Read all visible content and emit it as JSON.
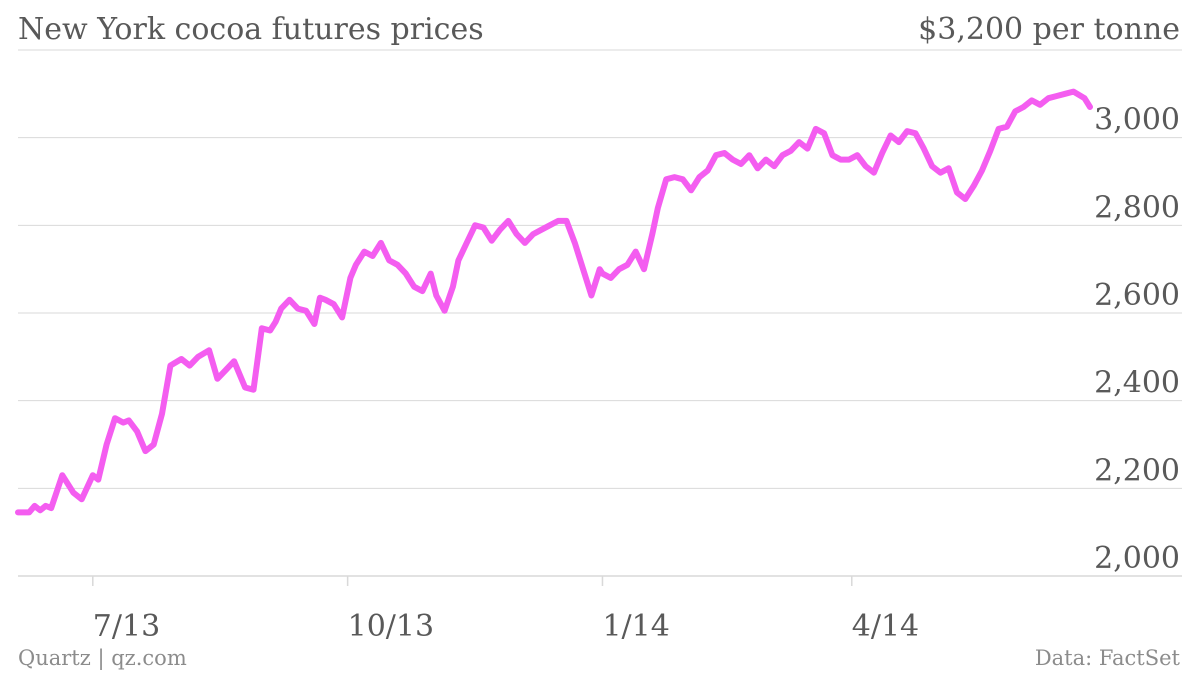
{
  "title": "New York cocoa futures prices",
  "unit_label": "$3,200 per tonne",
  "footer": {
    "source_left": "Quartz | qz.com",
    "source_right": "Data: FactSet"
  },
  "colors": {
    "line": "#f45df0",
    "grid": "#d9d9d9",
    "text": "#595959"
  },
  "chart_data": {
    "type": "line",
    "title": "New York cocoa futures prices",
    "xlabel": "",
    "ylabel": "",
    "ylim": [
      2000,
      3200
    ],
    "yticks": [
      2000,
      2200,
      2400,
      2600,
      2800,
      3000,
      3200
    ],
    "ytick_labels": [
      "2,000",
      "2,200",
      "2,400",
      "2,600",
      "2,800",
      "3,000",
      "3,200"
    ],
    "xlim": [
      "2013-06-04",
      "2014-06-26"
    ],
    "xticks": [
      "2013-07-01",
      "2013-10-01",
      "2014-01-01",
      "2014-04-01"
    ],
    "xtick_labels": [
      "7/13",
      "10/13",
      "1/14",
      "4/14"
    ],
    "grid": true,
    "legend": "none",
    "series": [
      {
        "x": [
          "2013-06-04",
          "2013-06-08",
          "2013-06-10",
          "2013-06-12",
          "2013-06-14",
          "2013-06-16",
          "2013-06-20",
          "2013-06-24",
          "2013-06-27",
          "2013-07-01",
          "2013-07-03",
          "2013-07-06",
          "2013-07-09",
          "2013-07-12",
          "2013-07-14",
          "2013-07-17",
          "2013-07-20",
          "2013-07-23",
          "2013-07-26",
          "2013-07-29",
          "2013-08-02",
          "2013-08-05",
          "2013-08-08",
          "2013-08-12",
          "2013-08-15",
          "2013-08-18",
          "2013-08-21",
          "2013-08-25",
          "2013-08-28",
          "2013-08-31",
          "2013-09-03",
          "2013-09-05",
          "2013-09-07",
          "2013-09-10",
          "2013-09-13",
          "2013-09-16",
          "2013-09-19",
          "2013-09-21",
          "2013-09-23",
          "2013-09-26",
          "2013-09-29",
          "2013-10-02",
          "2013-10-04",
          "2013-10-07",
          "2013-10-10",
          "2013-10-13",
          "2013-10-16",
          "2013-10-19",
          "2013-10-22",
          "2013-10-25",
          "2013-10-28",
          "2013-10-31",
          "2013-11-02",
          "2013-11-05",
          "2013-11-08",
          "2013-11-10",
          "2013-11-13",
          "2013-11-16",
          "2013-11-19",
          "2013-11-22",
          "2013-11-25",
          "2013-11-28",
          "2013-12-01",
          "2013-12-04",
          "2013-12-07",
          "2013-12-10",
          "2013-12-13",
          "2013-12-16",
          "2013-12-19",
          "2013-12-22",
          "2013-12-25",
          "2013-12-28",
          "2013-12-31",
          "2014-01-01",
          "2014-01-04",
          "2014-01-07",
          "2014-01-10",
          "2014-01-13",
          "2014-01-16",
          "2014-01-19",
          "2014-01-21",
          "2014-01-24",
          "2014-01-27",
          "2014-01-30",
          "2014-02-02",
          "2014-02-05",
          "2014-02-08",
          "2014-02-11",
          "2014-02-14",
          "2014-02-17",
          "2014-02-20",
          "2014-02-23",
          "2014-02-26",
          "2014-03-01",
          "2014-03-04",
          "2014-03-07",
          "2014-03-10",
          "2014-03-13",
          "2014-03-16",
          "2014-03-19",
          "2014-03-22",
          "2014-03-25",
          "2014-03-28",
          "2014-03-31",
          "2014-04-03",
          "2014-04-06",
          "2014-04-09",
          "2014-04-12",
          "2014-04-15",
          "2014-04-18",
          "2014-04-21",
          "2014-04-24",
          "2014-04-27",
          "2014-04-30",
          "2014-05-03",
          "2014-05-06",
          "2014-05-09",
          "2014-05-12",
          "2014-05-15",
          "2014-05-18",
          "2014-05-21",
          "2014-05-24",
          "2014-05-27",
          "2014-05-30",
          "2014-06-02",
          "2014-06-05",
          "2014-06-08",
          "2014-06-11",
          "2014-06-14",
          "2014-06-17",
          "2014-06-20",
          "2014-06-24",
          "2014-06-26"
        ],
        "y": [
          2145,
          2145,
          2160,
          2150,
          2160,
          2155,
          2230,
          2190,
          2175,
          2230,
          2220,
          2300,
          2360,
          2350,
          2355,
          2330,
          2285,
          2300,
          2370,
          2480,
          2495,
          2480,
          2500,
          2515,
          2450,
          2470,
          2490,
          2430,
          2425,
          2565,
          2560,
          2580,
          2610,
          2630,
          2610,
          2605,
          2575,
          2635,
          2630,
          2620,
          2590,
          2680,
          2710,
          2740,
          2730,
          2760,
          2720,
          2710,
          2690,
          2660,
          2650,
          2690,
          2640,
          2605,
          2660,
          2720,
          2760,
          2800,
          2795,
          2765,
          2790,
          2810,
          2780,
          2760,
          2780,
          2790,
          2800,
          2810,
          2810,
          2760,
          2700,
          2640,
          2700,
          2690,
          2680,
          2700,
          2710,
          2740,
          2700,
          2780,
          2840,
          2905,
          2910,
          2905,
          2880,
          2910,
          2925,
          2960,
          2965,
          2950,
          2940,
          2960,
          2930,
          2950,
          2935,
          2960,
          2970,
          2990,
          2975,
          3020,
          3010,
          2960,
          2950,
          2950,
          2960,
          2935,
          2920,
          2965,
          3005,
          2990,
          3015,
          3010,
          2975,
          2935,
          2920,
          2930,
          2875,
          2860,
          2890,
          2925,
          2970,
          3020,
          3025,
          3060,
          3070,
          3085,
          3075,
          3090,
          3095,
          3100,
          3105,
          3090,
          3070
        ]
      }
    ]
  }
}
